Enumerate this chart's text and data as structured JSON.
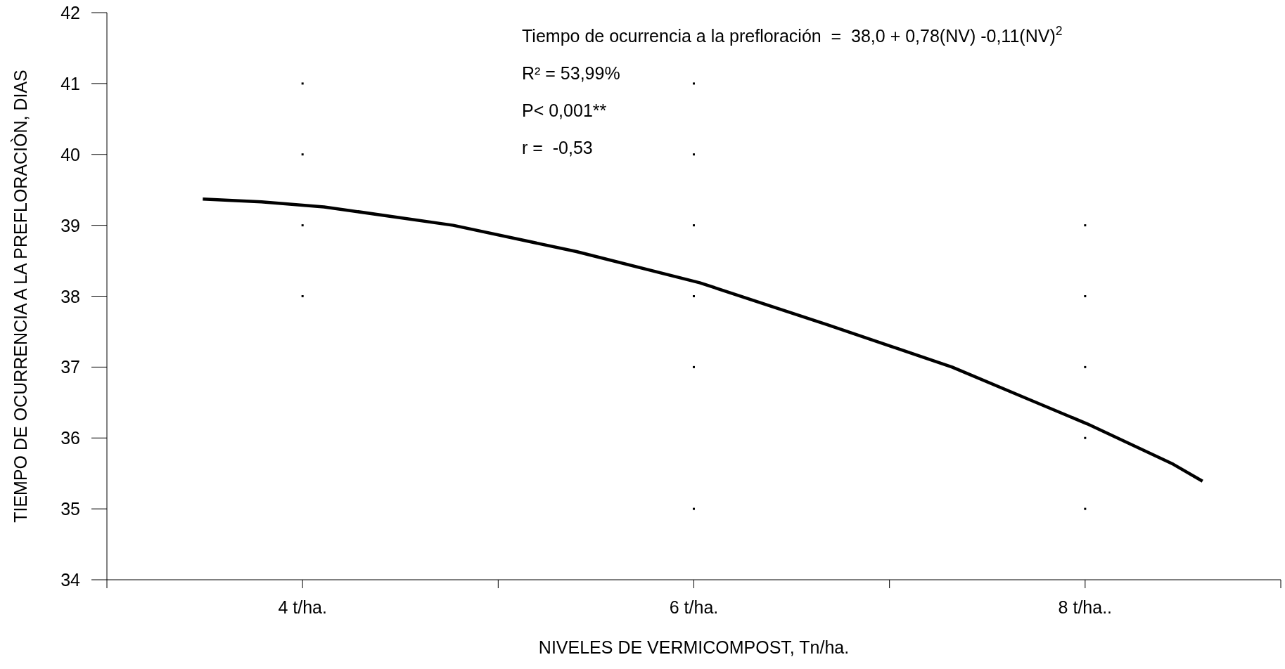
{
  "chart_data": {
    "type": "line",
    "xlabel": "NIVELES DE VERMICOMPOST, Tn/ha.",
    "ylabel": "TIEMPO DE OCURRENCIA A LA PREFLORACIÒN, DIAS",
    "xlim": [
      3,
      9
    ],
    "xticks": [
      {
        "value": 3,
        "label": null
      },
      {
        "value": 4,
        "label": "4 t/ha."
      },
      {
        "value": 5,
        "label": null
      },
      {
        "value": 6,
        "label": "6 t/ha."
      },
      {
        "value": 7,
        "label": null
      },
      {
        "value": 8,
        "label": "8 t/ha.."
      },
      {
        "value": 9,
        "label": null
      }
    ],
    "ylim": [
      34,
      42
    ],
    "yticks": [
      34,
      35,
      36,
      37,
      38,
      39,
      40,
      41,
      42
    ],
    "grid": false,
    "series": [
      {
        "color": "#000000",
        "marker": "none",
        "line_style": "solid",
        "x": [
          3.49,
          3.79,
          4.11,
          4.77,
          5.4,
          6.03,
          6.68,
          7.32,
          7.69,
          8.01,
          8.45,
          8.6
        ],
        "values": [
          39.37,
          39.33,
          39.26,
          39.0,
          38.63,
          38.19,
          37.6,
          37.0,
          36.57,
          36.2,
          35.63,
          35.39
        ]
      },
      {
        "type": "scatter",
        "color": "#000000",
        "marker": "square",
        "x": [
          4,
          4,
          4,
          4,
          6,
          6,
          6,
          6,
          6,
          6,
          8,
          8,
          8,
          8,
          8
        ],
        "values": [
          41,
          40,
          39,
          38,
          41,
          40,
          39,
          38,
          37,
          35,
          39,
          38,
          37,
          36,
          35
        ]
      }
    ],
    "annotations": [
      "Tiempo de ocurrencia a la prefloración  =  38,0 + 0,78(NV) -0,11(NV)$^{2}$",
      "R² = 53,99%",
      "P< 0,001**",
      "r =  -0,53"
    ]
  }
}
